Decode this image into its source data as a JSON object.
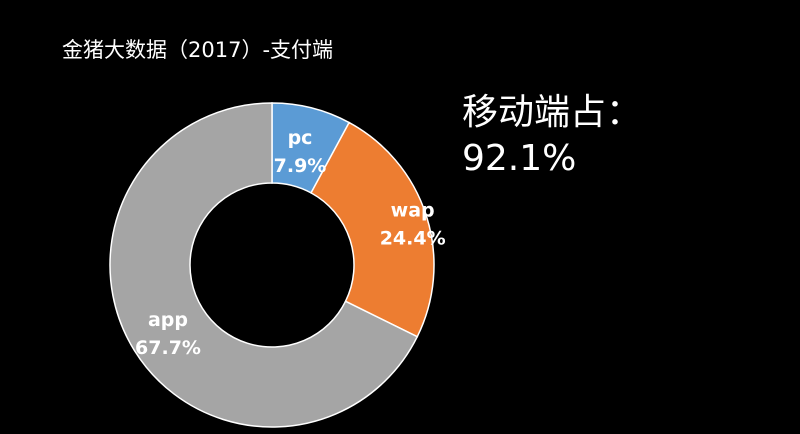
{
  "title": "金猪大数据（2017）-支付端",
  "mobile_note": {
    "line1": "移动端占：",
    "line2": "92.1%"
  },
  "colors": {
    "background": "#000000",
    "pc": "#5b9bd5",
    "wap": "#ed7d31",
    "app": "#a5a5a5"
  },
  "chart_data": {
    "type": "pie",
    "subtype": "donut",
    "title": "金猪大数据（2017）-支付端",
    "slices": [
      {
        "name": "pc",
        "value": 7.9,
        "label": "7.9%",
        "color": "#5b9bd5"
      },
      {
        "name": "wap",
        "value": 24.4,
        "label": "24.4%",
        "color": "#ed7d31"
      },
      {
        "name": "app",
        "value": 67.7,
        "label": "67.7%",
        "color": "#a5a5a5"
      }
    ],
    "legend": "none",
    "start_angle": "top, clockwise"
  }
}
